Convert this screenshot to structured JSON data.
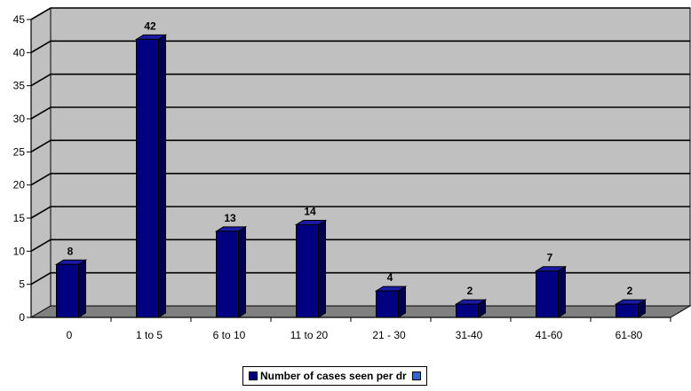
{
  "chart_data": {
    "type": "bar",
    "categories": [
      "0",
      "1 to 5",
      "6 to 10",
      "11 to 20",
      "21 - 30",
      "31-40",
      "41-60",
      "61-80"
    ],
    "series": [
      {
        "name": "Number of cases seen per dr",
        "values": [
          8,
          42,
          13,
          14,
          4,
          2,
          7,
          2
        ],
        "color": "#000080"
      }
    ],
    "ylim": [
      0,
      45
    ],
    "yticks": [
      "0",
      "5",
      "10",
      "15",
      "20",
      "25",
      "30",
      "35",
      "40",
      "45"
    ],
    "title": "",
    "xlabel": "",
    "ylabel": "",
    "grid": true,
    "legend_position": "bottom",
    "colors": {
      "wall": "#c0c0c0",
      "floor": "#808080",
      "bar_front": "#000080",
      "bar_side": "#00004d",
      "bar_top": "#1a1aa6",
      "second_swatch": "#3366cc"
    }
  },
  "legend": {
    "items": [
      {
        "label": "Number of cases seen per dr",
        "color": "#000080"
      },
      {
        "label": "",
        "color": "#3366cc"
      }
    ]
  }
}
